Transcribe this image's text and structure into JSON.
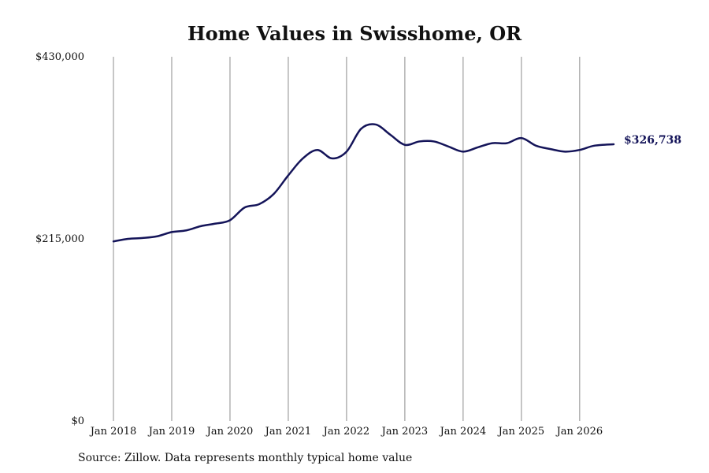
{
  "source_note": "Source: Zillow. Data represents monthly typical home value",
  "colors": {
    "line": "#141459",
    "grid": "#8c8c8c"
  },
  "chart_data": {
    "type": "line",
    "title": "Home Values in Swisshome, OR",
    "xlabel": "",
    "ylabel": "",
    "x_tick_labels": [
      "Jan 2018",
      "Jan 2019",
      "Jan 2020",
      "Jan 2021",
      "Jan 2022",
      "Jan 2023",
      "Jan 2024",
      "Jan 2025",
      "Jan 2026"
    ],
    "y_tick_labels": [
      "$0",
      "$215,000",
      "$430,000"
    ],
    "y_ticks": [
      0,
      215000,
      430000
    ],
    "ylim": [
      0,
      430000
    ],
    "xlim": [
      "2018-01",
      "2026-08"
    ],
    "grid": "vertical lines at January of each year",
    "end_value_label": "$326,738",
    "series": [
      {
        "x": [
          "2018-01",
          "2018-04",
          "2018-07",
          "2018-10",
          "2019-01",
          "2019-04",
          "2019-07",
          "2019-10",
          "2020-01",
          "2020-04",
          "2020-07",
          "2020-10",
          "2021-01",
          "2021-04",
          "2021-07",
          "2021-10",
          "2022-01",
          "2022-04",
          "2022-07",
          "2022-10",
          "2023-01",
          "2023-04",
          "2023-07",
          "2023-10",
          "2024-01",
          "2024-04",
          "2024-07",
          "2024-10",
          "2025-01",
          "2025-04",
          "2025-07",
          "2025-10",
          "2026-01",
          "2026-04",
          "2026-08"
        ],
        "values": [
          212000,
          215000,
          216000,
          218000,
          223000,
          225000,
          230000,
          233000,
          237000,
          252000,
          256000,
          268000,
          290000,
          310000,
          320000,
          310000,
          318000,
          345000,
          350000,
          338000,
          326000,
          330000,
          330000,
          324000,
          318000,
          323000,
          328000,
          328000,
          334000,
          325000,
          321000,
          318000,
          320000,
          325000,
          326738
        ]
      }
    ]
  }
}
